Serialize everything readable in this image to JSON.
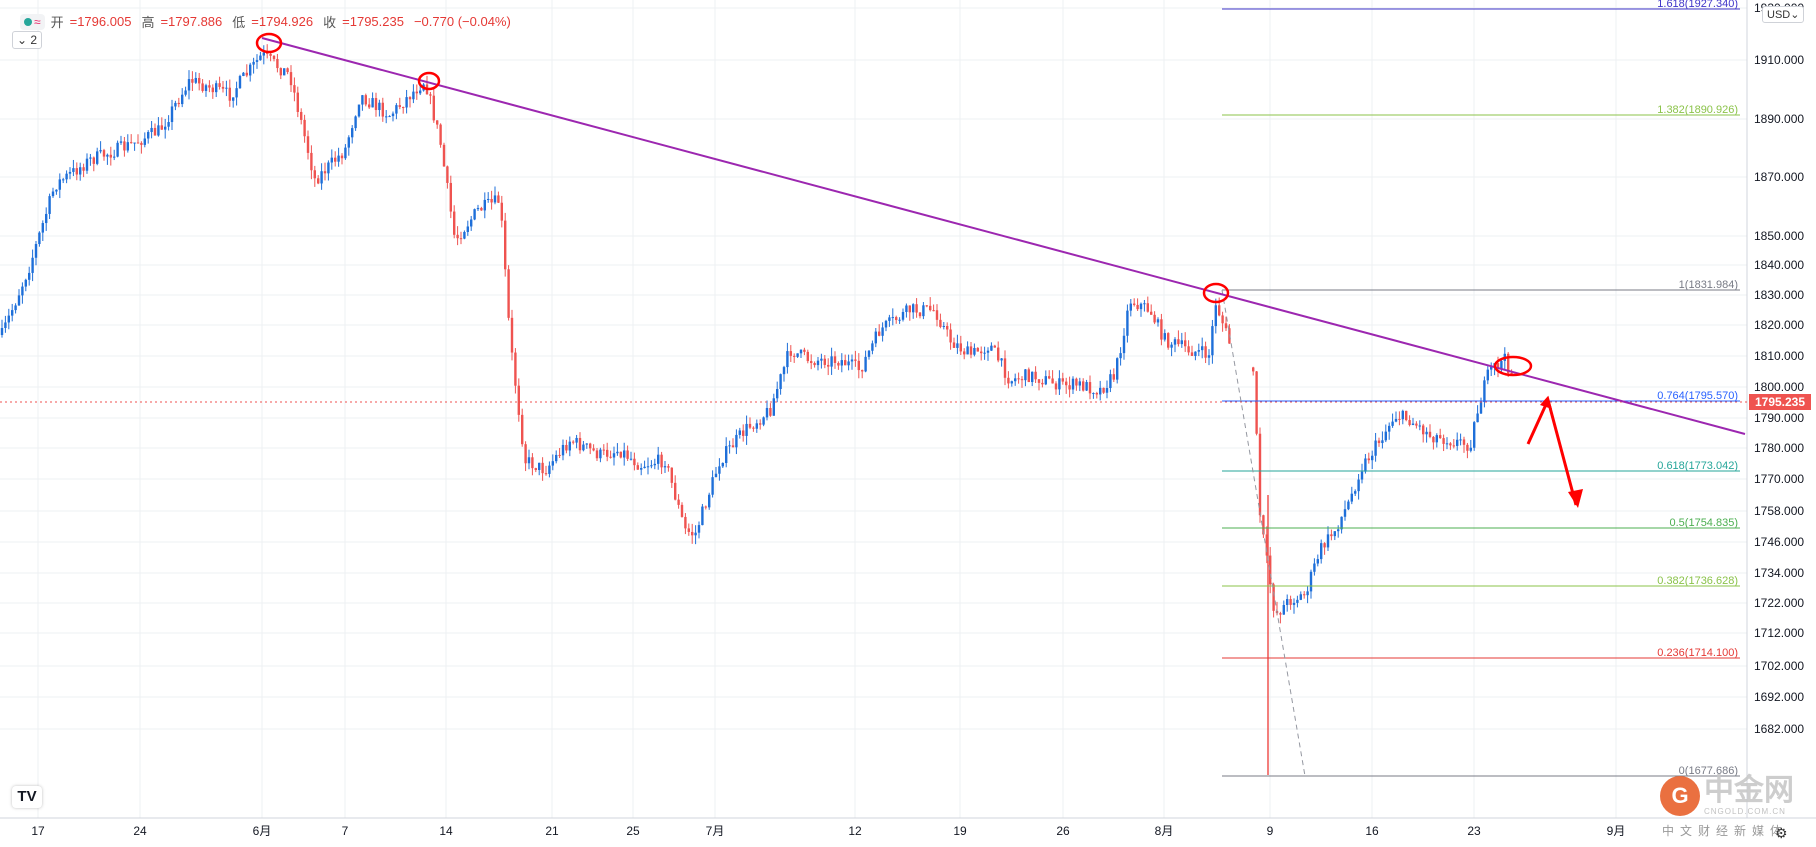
{
  "header": {
    "open_label": "开",
    "open": "=1796.005",
    "high_label": "高",
    "high": "=1797.886",
    "low_label": "低",
    "low": "=1794.926",
    "close_label": "收",
    "close": "=1795.235",
    "change": "−0.770 (−0.04%)",
    "wave_icon": "≈",
    "collapse": "⌄ 2",
    "currency": "USD⌄"
  },
  "chart_data": {
    "type": "candlestick",
    "price_axis_labels": [
      "1930.000",
      "1910.000",
      "1890.000",
      "1870.000",
      "1850.000",
      "1840.000",
      "1830.000",
      "1820.000",
      "1810.000",
      "1800.000",
      "1790.000",
      "1780.000",
      "1770.000",
      "1758.000",
      "1746.000",
      "1734.000",
      "1722.000",
      "1712.000",
      "1702.000",
      "1692.000",
      "1682.000"
    ],
    "time_axis_labels": [
      "17",
      "24",
      "6月",
      "7",
      "14",
      "21",
      "25",
      "7月",
      "12",
      "19",
      "26",
      "8月",
      "9",
      "16",
      "23",
      "9月"
    ],
    "current_price": "1795.235",
    "fib_levels": [
      {
        "label": "1.618(1927.340)",
        "color": "#3f35c9"
      },
      {
        "label": "1.382(1890.926)",
        "color": "#8bc34a"
      },
      {
        "label": "1(1831.984)",
        "color": "#787b86"
      },
      {
        "label": "0.764(1795.570)",
        "color": "#2962ff"
      },
      {
        "label": "0.618(1773.042)",
        "color": "#26a69a"
      },
      {
        "label": "0.5(1754.835)",
        "color": "#4caf50"
      },
      {
        "label": "0.382(1736.628)",
        "color": "#8bc34a"
      },
      {
        "label": "0.236(1714.100)",
        "color": "#e53935"
      },
      {
        "label": "0(1677.686)",
        "color": "#787b86"
      }
    ],
    "trendline_color": "#9c27b0",
    "up_color": "#1e6fd9",
    "down_color": "#ef5350",
    "annotation_color": "#ff0000"
  },
  "watermark": {
    "badge": "G",
    "cn": "中金网",
    "url": "CNGOLD.COM.CN",
    "sub": "中文财经新媒体"
  },
  "logo": "TV"
}
